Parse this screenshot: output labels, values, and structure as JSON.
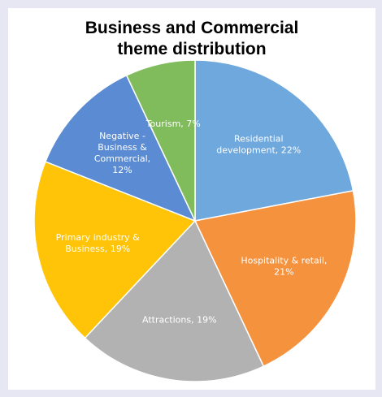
{
  "chart_data": {
    "type": "pie",
    "title_lines": [
      "Business and Commercial",
      "theme distribution"
    ],
    "slices": [
      {
        "label_lines": [
          "Residential",
          "development, 22%"
        ],
        "value": 22,
        "color": "#6fa8dc"
      },
      {
        "label_lines": [
          "Hospitality & retail,",
          "21%"
        ],
        "value": 21,
        "color": "#f5923e"
      },
      {
        "label_lines": [
          "Attractions, 19%"
        ],
        "value": 19,
        "color": "#b2b2b2"
      },
      {
        "label_lines": [
          "Primary industry &",
          "Business, 19%"
        ],
        "value": 19,
        "color": "#ffc408"
      },
      {
        "label_lines": [
          "Negative -",
          "Business &",
          "Commercial,",
          "12%"
        ],
        "value": 12,
        "color": "#5a8bd3"
      },
      {
        "label_lines": [
          "Tourism, 7%"
        ],
        "value": 7,
        "color": "#80bb5c"
      }
    ],
    "start_angle_deg": 0,
    "direction": "clockwise",
    "legend": "none"
  }
}
